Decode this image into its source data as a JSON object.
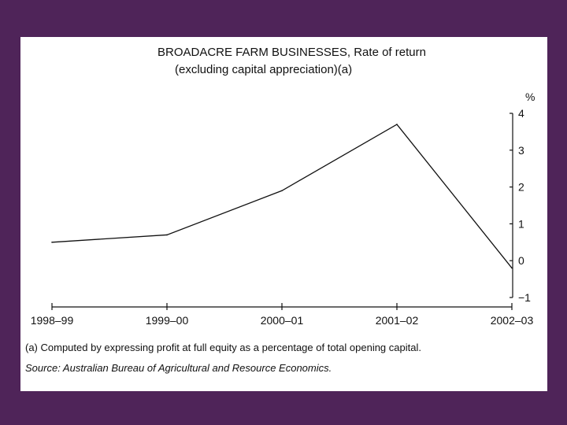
{
  "colors": {
    "background": "#4f2459",
    "panel": "#ffffff",
    "line": "#111111"
  },
  "chart_data": {
    "type": "line",
    "title": "BROADACRE FARM BUSINESSES, Rate of return",
    "subtitle": "(excluding capital appreciation)(a)",
    "ylabel": "%",
    "categories": [
      "1998–99",
      "1999–00",
      "2000–01",
      "2001–02",
      "2002–03"
    ],
    "series": [
      {
        "values": [
          0.5,
          0.7,
          1.9,
          3.7,
          -0.2
        ]
      }
    ],
    "ylim": [
      -1,
      4
    ],
    "yticks": [
      "4",
      "3",
      "2",
      "1",
      "0",
      "−1"
    ],
    "y_axis_side": "right",
    "grid": false,
    "legend": "none"
  },
  "footnote": "(a) Computed by expressing profit at full equity as a percentage of total opening capital.",
  "source": "Source: Australian Bureau of Agricultural and Resource Economics."
}
